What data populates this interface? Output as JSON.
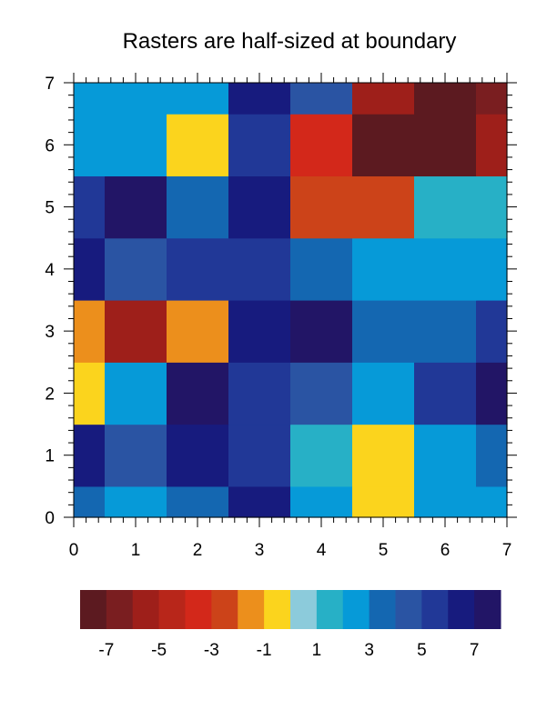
{
  "chart_data": {
    "type": "heatmap",
    "title": "Rasters are half-sized at boundary",
    "xlabel": "",
    "ylabel": "",
    "xlim": [
      0,
      7
    ],
    "ylim": [
      0,
      7
    ],
    "x_ticks": [
      "0",
      "1",
      "2",
      "3",
      "4",
      "5",
      "6",
      "7"
    ],
    "y_ticks": [
      "0",
      "1",
      "2",
      "3",
      "4",
      "5",
      "6",
      "7"
    ],
    "grid_x": [
      0,
      1,
      2,
      3,
      4,
      5,
      6,
      7
    ],
    "grid_y": [
      0,
      1,
      2,
      3,
      4,
      5,
      6,
      7
    ],
    "values_rows_bottom_to_top": [
      [
        3,
        2,
        3,
        6,
        2,
        -1,
        2,
        2
      ],
      [
        6,
        4,
        6,
        5,
        1,
        -1,
        2,
        3
      ],
      [
        -1,
        2,
        8,
        5,
        4,
        2,
        5,
        8
      ],
      [
        -2,
        -6,
        -2,
        6,
        7,
        3,
        3,
        5
      ],
      [
        6,
        4,
        5,
        5,
        3,
        2,
        2,
        2
      ],
      [
        5,
        8,
        3,
        6,
        -3,
        -3,
        1,
        1
      ],
      [
        2,
        2,
        -1,
        5,
        -4,
        -8,
        -8,
        -6
      ],
      [
        2,
        2,
        2,
        6,
        4,
        -6,
        -8,
        -7
      ]
    ],
    "colorbar": {
      "placement": "bottom",
      "levels": [
        -8,
        -7,
        -6,
        -5,
        -4,
        -3,
        -2,
        -1,
        0,
        1,
        2,
        3,
        4,
        5,
        6,
        7,
        8
      ],
      "colors": [
        "#5c1a20",
        "#7a1e20",
        "#9e1f1a",
        "#b8261a",
        "#d3281a",
        "#cc4319",
        "#ec8f1c",
        "#fbd41d",
        "#8ccbdb",
        "#27b0c6",
        "#069ad8",
        "#1467b1",
        "#2a54a3",
        "#213897",
        "#171b7e",
        "#221566"
      ],
      "labels": [
        "-7",
        "-5",
        "-3",
        "-1",
        "1",
        "3",
        "5",
        "7"
      ]
    }
  }
}
